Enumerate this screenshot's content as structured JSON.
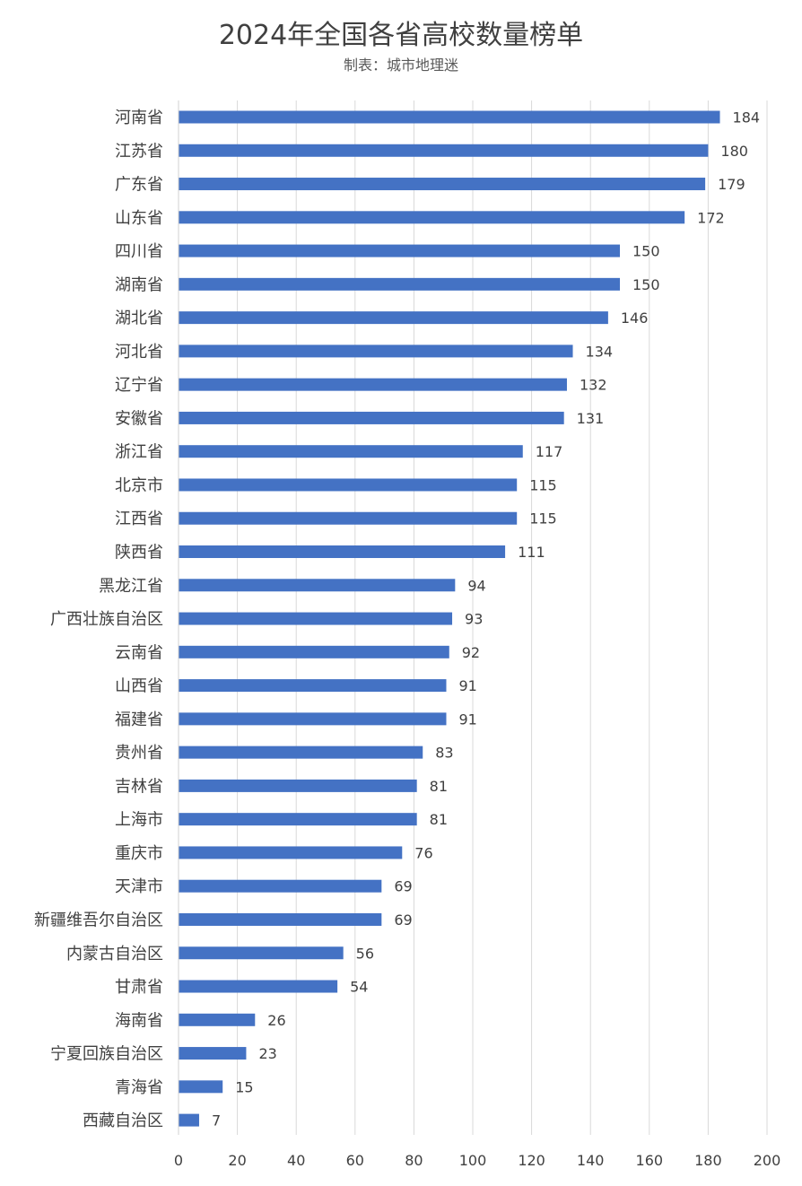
{
  "chart_data": {
    "type": "bar",
    "orientation": "horizontal",
    "title": "2024年全国各省高校数量榜单",
    "subtitle": "制表：城市地理迷",
    "categories": [
      "河南省",
      "江苏省",
      "广东省",
      "山东省",
      "四川省",
      "湖南省",
      "湖北省",
      "河北省",
      "辽宁省",
      "安徽省",
      "浙江省",
      "北京市",
      "江西省",
      "陕西省",
      "黑龙江省",
      "广西壮族自治区",
      "云南省",
      "山西省",
      "福建省",
      "贵州省",
      "吉林省",
      "上海市",
      "重庆市",
      "天津市",
      "新疆维吾尔自治区",
      "内蒙古自治区",
      "甘肃省",
      "海南省",
      "宁夏回族自治区",
      "青海省",
      "西藏自治区"
    ],
    "values": [
      184,
      180,
      179,
      172,
      150,
      150,
      146,
      134,
      132,
      131,
      117,
      115,
      115,
      111,
      94,
      93,
      92,
      91,
      91,
      83,
      81,
      81,
      76,
      69,
      69,
      56,
      54,
      26,
      23,
      15,
      7
    ],
    "xlim": [
      0,
      200
    ],
    "xticks": [
      0,
      20,
      40,
      60,
      80,
      100,
      120,
      140,
      160,
      180,
      200
    ],
    "grid": true,
    "legend": "none",
    "bar_color": "#4472C4"
  }
}
